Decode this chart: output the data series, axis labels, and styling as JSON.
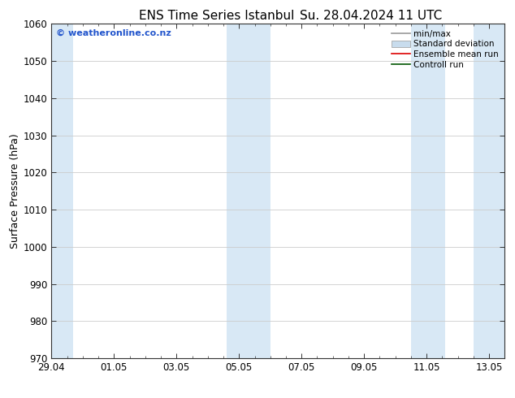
{
  "title_left": "ENS Time Series Istanbul",
  "title_right": "Su. 28.04.2024 11 UTC",
  "ylabel": "Surface Pressure (hPa)",
  "ylim": [
    970,
    1060
  ],
  "yticks": [
    970,
    980,
    990,
    1000,
    1010,
    1020,
    1030,
    1040,
    1050,
    1060
  ],
  "xtick_labels": [
    "29.04",
    "01.05",
    "03.05",
    "05.05",
    "07.05",
    "09.05",
    "11.05",
    "13.05"
  ],
  "xtick_positions": [
    0,
    2,
    4,
    6,
    8,
    10,
    12,
    14
  ],
  "n_minor_ticks": 4,
  "xlim": [
    0,
    14.5
  ],
  "shaded_bands": [
    {
      "xmin": -0.3,
      "xmax": 0.7
    },
    {
      "xmin": 5.6,
      "xmax": 7.0
    },
    {
      "xmin": 11.5,
      "xmax": 12.6
    },
    {
      "xmin": 13.5,
      "xmax": 14.6
    }
  ],
  "shaded_color": "#d8e8f5",
  "background_color": "#ffffff",
  "watermark": "© weatheronline.co.nz",
  "watermark_color": "#2255cc",
  "legend_items": [
    {
      "label": "min/max",
      "color": "#999999",
      "lw": 1.2,
      "type": "line"
    },
    {
      "label": "Standard deviation",
      "color": "#c8dced",
      "lw": 6,
      "type": "patch"
    },
    {
      "label": "Ensemble mean run",
      "color": "#dd0000",
      "lw": 1.2,
      "type": "line"
    },
    {
      "label": "Controll run",
      "color": "#005500",
      "lw": 1.2,
      "type": "line"
    }
  ],
  "title_fontsize": 11,
  "tick_fontsize": 8.5,
  "ylabel_fontsize": 9,
  "grid_color": "#cccccc",
  "spine_color": "#333333",
  "tick_color": "#333333"
}
